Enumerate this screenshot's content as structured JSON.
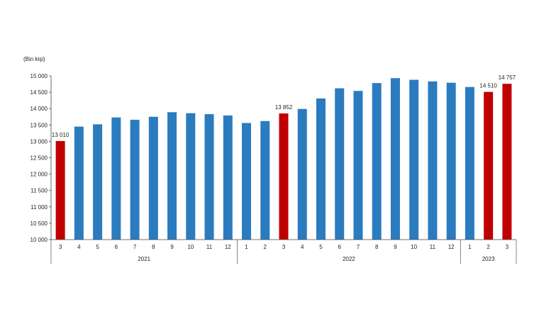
{
  "chart_data": {
    "type": "bar",
    "unit_label": "(Bin kişi)",
    "ylim": [
      10000,
      15000
    ],
    "yticks": [
      10000,
      10500,
      11000,
      11500,
      12000,
      12500,
      13000,
      13500,
      14000,
      14500,
      15000
    ],
    "ytick_labels": [
      "10 000",
      "10 500",
      "11 000",
      "11 500",
      "12 000",
      "12 500",
      "13 000",
      "13 500",
      "14 000",
      "14 500",
      "15 000"
    ],
    "grid": false,
    "legend": "none",
    "colors": {
      "normal": "#2b7bbf",
      "highlight": "#c00000"
    },
    "categories": [
      "3",
      "4",
      "5",
      "6",
      "7",
      "8",
      "9",
      "10",
      "11",
      "12",
      "1",
      "2",
      "3",
      "4",
      "5",
      "6",
      "7",
      "8",
      "9",
      "10",
      "11",
      "12",
      "1",
      "2",
      "3"
    ],
    "years": [
      {
        "label": "2021",
        "start": 0,
        "count": 10
      },
      {
        "label": "2022",
        "start": 10,
        "count": 12
      },
      {
        "label": "2023",
        "start": 22,
        "count": 3
      }
    ],
    "values": [
      13010,
      13450,
      13520,
      13730,
      13660,
      13750,
      13890,
      13860,
      13830,
      13790,
      13560,
      13620,
      13852,
      13990,
      14310,
      14620,
      14540,
      14780,
      14930,
      14880,
      14830,
      14790,
      14660,
      14510,
      14757
    ],
    "highlight": [
      0,
      12,
      23,
      24
    ],
    "data_labels": [
      {
        "index": 0,
        "text": "13 010"
      },
      {
        "index": 12,
        "text": "13 852"
      },
      {
        "index": 23,
        "text": "14 510"
      },
      {
        "index": 24,
        "text": "14 757"
      }
    ]
  }
}
